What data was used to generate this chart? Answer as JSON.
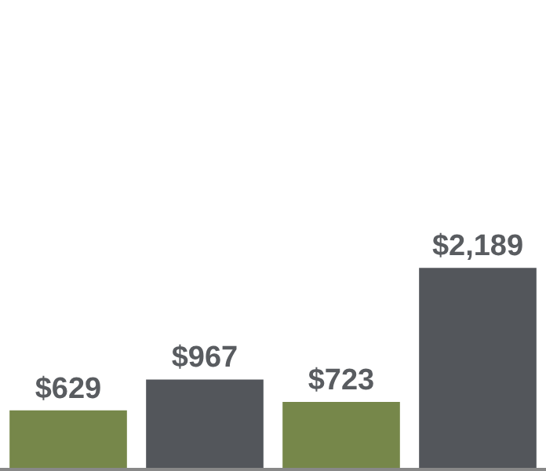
{
  "chart_data": {
    "type": "bar",
    "categories": [
      null,
      null,
      null,
      null
    ],
    "values": [
      629,
      967,
      723,
      2189
    ],
    "colors": [
      "#76874a",
      "#53565b",
      "#76874a",
      "#53565b"
    ],
    "value_labels": [
      "$629",
      "$967",
      "$723",
      "$2,189"
    ]
  }
}
